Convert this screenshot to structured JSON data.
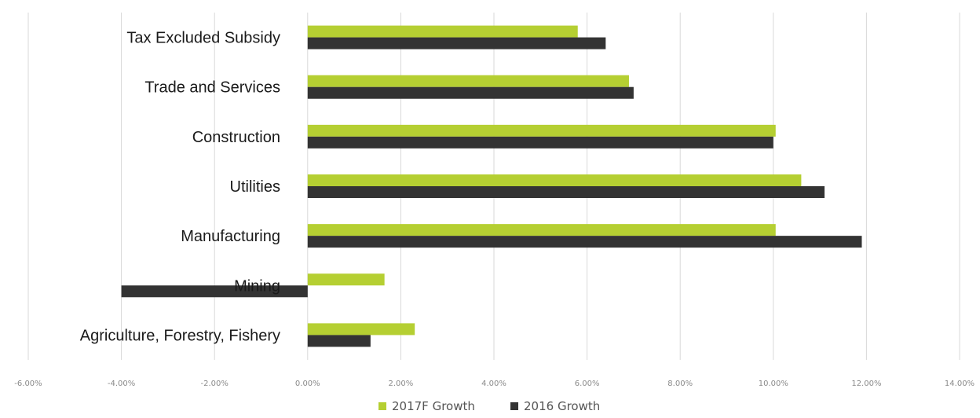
{
  "chart_data": {
    "type": "bar",
    "orientation": "horizontal",
    "categories": [
      "Tax Excluded Subsidy",
      "Trade and Services",
      "Construction",
      "Utilities",
      "Manufacturing",
      "Mining",
      "Agriculture, Forestry, Fishery"
    ],
    "series": [
      {
        "name": "2017F Growth",
        "color": "#b5cf32",
        "values": [
          5.8,
          6.9,
          10.05,
          10.6,
          10.05,
          1.65,
          2.3
        ]
      },
      {
        "name": "2016 Growth",
        "color": "#333333",
        "values": [
          6.4,
          7.0,
          10.0,
          11.1,
          11.9,
          -4.0,
          1.35
        ]
      }
    ],
    "xlim": [
      -6,
      14
    ],
    "xticks": [
      -6,
      -4,
      -2,
      0,
      2,
      4,
      6,
      8,
      10,
      12,
      14
    ],
    "xtick_labels": [
      "-6.00%",
      "-4.00%",
      "-2.00%",
      "0.00%",
      "2.00%",
      "4.00%",
      "6.00%",
      "8.00%",
      "10.00%",
      "12.00%",
      "14.00%"
    ],
    "grid": "vertical",
    "legend": "bottom-center",
    "title": "",
    "xlabel": "",
    "ylabel": ""
  }
}
